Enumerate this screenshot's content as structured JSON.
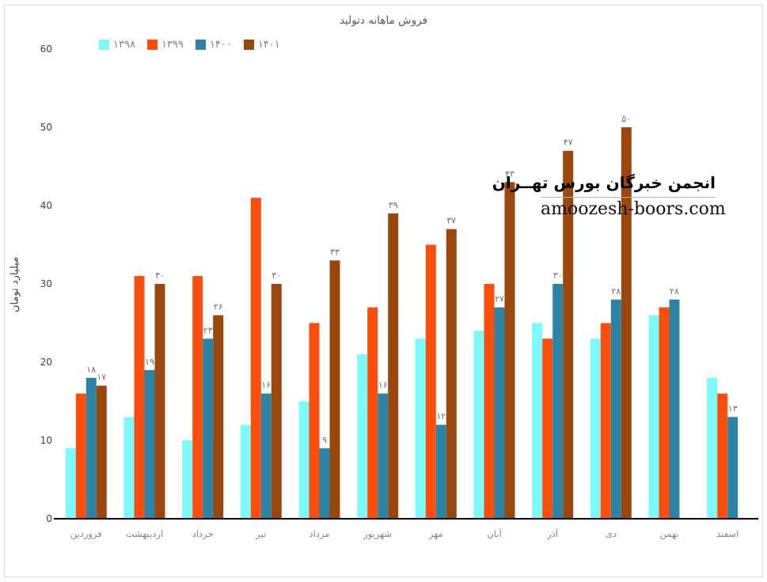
{
  "title": "فروش ماهانه دتولید",
  "watermark": {
    "line1": "انجمن خبرگان بورس تهــران",
    "line2": "amoozesh-boors.com"
  },
  "colors": {
    "series_1398": "#7df8fb",
    "series_1399": "#fb4e0c",
    "series_1400": "#2b84a5",
    "series_1401": "#9a470e",
    "axis_line": "#000000",
    "tick_label": "#3d3d3d",
    "category_label": "#848484",
    "data_label": "#6e6e6e",
    "frame_border": "#dcdcdc"
  },
  "chart_data": {
    "type": "bar",
    "title": "فروش ماهانه دتولید",
    "xlabel": "",
    "ylabel": "میلیارد تومان",
    "ylim": [
      0,
      60
    ],
    "yticks": [
      0,
      10,
      20,
      30,
      40,
      50,
      60
    ],
    "grid": false,
    "legend_position": "top-left",
    "categories": [
      "فروردین",
      "اردیبهشت",
      "خرداد",
      "تیر",
      "مرداد",
      "شهریور",
      "مهر",
      "آبان",
      "آذر",
      "دی",
      "بهمن",
      "اسفند"
    ],
    "series": [
      {
        "name": "۱۳۹۸",
        "color": "#7df8fb",
        "show_labels": false,
        "values": [
          9,
          13,
          10,
          12,
          15,
          21,
          23,
          24,
          25,
          23,
          26,
          18
        ]
      },
      {
        "name": "۱۳۹۹",
        "color": "#fb4e0c",
        "show_labels": false,
        "values": [
          16,
          31,
          31,
          41,
          25,
          27,
          35,
          30,
          23,
          25,
          27,
          16
        ]
      },
      {
        "name": "۱۴۰۰",
        "color": "#2b84a5",
        "show_labels": true,
        "values": [
          18,
          19,
          23,
          16,
          9,
          16,
          12,
          27,
          30,
          28,
          28,
          13
        ]
      },
      {
        "name": "۱۴۰۱",
        "color": "#9a470e",
        "show_labels": true,
        "values": [
          17,
          30,
          26,
          30,
          33,
          39,
          37,
          43,
          47,
          50,
          null,
          null
        ]
      }
    ]
  }
}
